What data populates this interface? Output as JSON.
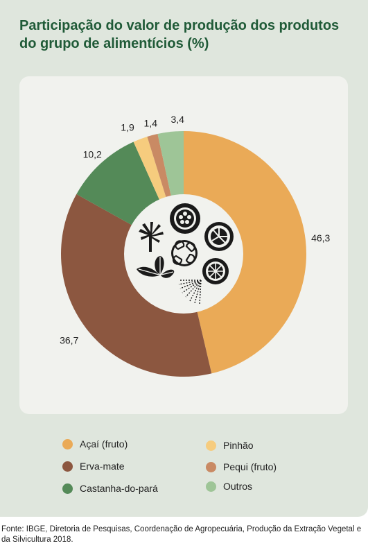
{
  "title": "Participação do valor de produção dos produtos do grupo de alimentícios (%)",
  "source": "Fonte: IBGE, Diretoria de Pesquisas, Coordenação de Agropecuária, Produção da Extração Vegetal e da Silvicultura 2018.",
  "chart_data": {
    "type": "pie",
    "title": "Participação do valor de produção dos produtos do grupo de alimentícios (%)",
    "categories": [
      "Açaí (fruto)",
      "Erva-mate",
      "Castanha-do-pará",
      "Pinhão",
      "Pequi (fruto)",
      "Outros"
    ],
    "values": [
      46.3,
      36.7,
      10.2,
      1.9,
      1.4,
      3.4
    ],
    "labels": [
      "46,3",
      "36,7",
      "10,2",
      "1,9",
      "1,4",
      "3,4"
    ],
    "colors": [
      "#eaaa57",
      "#8c5740",
      "#548a58",
      "#f6cc7e",
      "#c98a64",
      "#9ec597"
    ],
    "legend": "bottom"
  }
}
